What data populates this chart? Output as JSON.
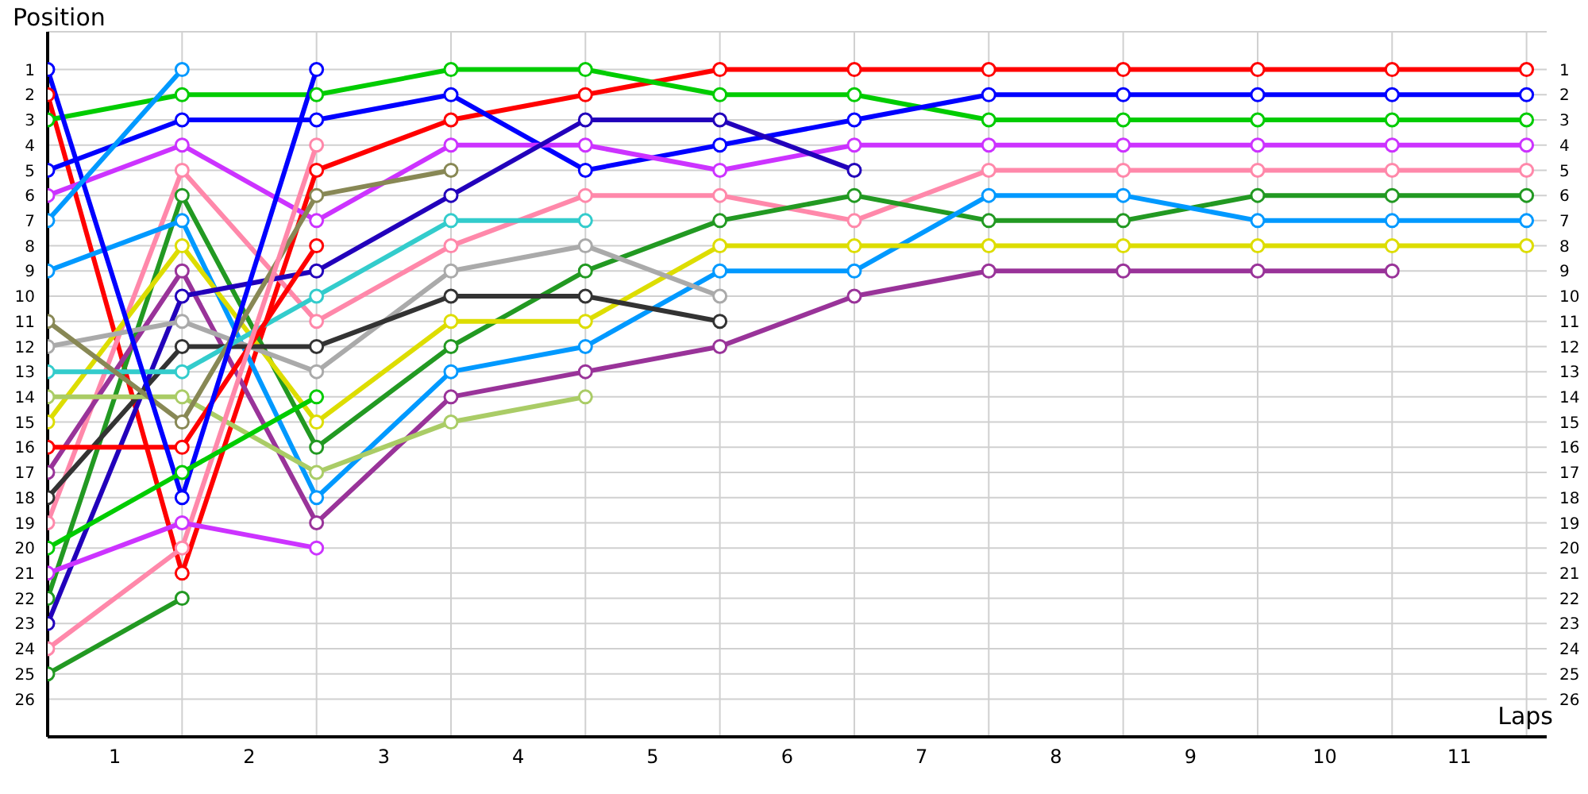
{
  "chart_data": {
    "type": "line",
    "xlabel": "Laps",
    "ylabel": "Position",
    "x": [
      0,
      1,
      2,
      3,
      4,
      5,
      6,
      7,
      8,
      9,
      10,
      11
    ],
    "xlim": [
      0,
      11.15
    ],
    "xticks": [
      {
        "value": 0,
        "label": null
      },
      {
        "value": 0.5,
        "label": "1"
      },
      {
        "value": 1,
        "label": null
      },
      {
        "value": 1.5,
        "label": "2"
      },
      {
        "value": 2,
        "label": null
      },
      {
        "value": 2.5,
        "label": "3"
      },
      {
        "value": 3,
        "label": null
      },
      {
        "value": 3.5,
        "label": "4"
      },
      {
        "value": 4,
        "label": null
      },
      {
        "value": 4.5,
        "label": "5"
      },
      {
        "value": 5,
        "label": null
      },
      {
        "value": 5.5,
        "label": "6"
      },
      {
        "value": 6,
        "label": null
      },
      {
        "value": 6.5,
        "label": "7"
      },
      {
        "value": 7,
        "label": null
      },
      {
        "value": 7.5,
        "label": "8"
      },
      {
        "value": 8,
        "label": null
      },
      {
        "value": 8.5,
        "label": "9"
      },
      {
        "value": 9,
        "label": null
      },
      {
        "value": 9.5,
        "label": "10"
      },
      {
        "value": 10,
        "label": null
      },
      {
        "value": 10.5,
        "label": "11"
      },
      {
        "value": 11,
        "label": null
      }
    ],
    "ylim": [
      27.5,
      -0.5
    ],
    "yticks": [
      1,
      2,
      3,
      4,
      5,
      6,
      7,
      8,
      9,
      10,
      11,
      12,
      13,
      14,
      15,
      16,
      17,
      18,
      19,
      20,
      21,
      22,
      23,
      24,
      25,
      26
    ],
    "y2lim": [
      27.5,
      -0.5
    ],
    "y2ticks": [
      1,
      2,
      3,
      4,
      5,
      6,
      7,
      8,
      9,
      10,
      11,
      12,
      13,
      14,
      15,
      16,
      17,
      18,
      19,
      20,
      21,
      22,
      23,
      24,
      25,
      26
    ],
    "grid": true,
    "marker": "circle",
    "line_style": "solid",
    "series": [
      {
        "color": "#ff0000",
        "values": [
          2,
          21,
          5,
          3,
          2,
          1,
          1,
          1,
          1,
          1,
          1,
          1
        ]
      },
      {
        "color": "#00cc00",
        "values": [
          3,
          2,
          2,
          1,
          1,
          2,
          2,
          3,
          3,
          3,
          3,
          3
        ]
      },
      {
        "color": "#0000ff",
        "values": [
          5,
          3,
          3,
          2,
          5,
          4,
          3,
          2,
          2,
          2,
          2,
          2
        ]
      },
      {
        "color": "#cc33ff",
        "values": [
          6,
          4,
          7,
          4,
          4,
          5,
          4,
          4,
          4,
          4,
          4,
          4
        ]
      },
      {
        "color": "#ff88aa",
        "values": [
          19,
          5,
          11,
          8,
          6,
          6,
          7,
          5,
          5,
          5,
          5,
          5
        ]
      },
      {
        "color": "#229922",
        "values": [
          22,
          6,
          16,
          12,
          9,
          7,
          6,
          7,
          7,
          6,
          6,
          6
        ]
      },
      {
        "color": "#0099ff",
        "values": [
          9,
          7,
          18,
          13,
          12,
          9,
          9,
          6,
          6,
          7,
          7,
          7
        ]
      },
      {
        "color": "#dddd00",
        "values": [
          15,
          8,
          15,
          11,
          11,
          8,
          8,
          8,
          8,
          8,
          8,
          8
        ]
      },
      {
        "color": "#993399",
        "values": [
          17,
          9,
          19,
          14,
          13,
          12,
          10,
          9,
          9,
          9,
          9,
          null
        ]
      },
      {
        "color": "#2200bb",
        "values": [
          23,
          10,
          9,
          6,
          3,
          3,
          5,
          null,
          null,
          null,
          null,
          null
        ]
      },
      {
        "color": "#aaaaaa",
        "values": [
          12,
          11,
          13,
          9,
          8,
          10,
          null,
          null,
          null,
          null,
          null,
          null
        ]
      },
      {
        "color": "#333333",
        "values": [
          18,
          12,
          12,
          10,
          10,
          11,
          null,
          null,
          null,
          null,
          null,
          null
        ]
      },
      {
        "color": "#33cccc",
        "values": [
          13,
          13,
          10,
          7,
          7,
          null,
          null,
          null,
          null,
          null,
          null,
          null
        ]
      },
      {
        "color": "#aacc66",
        "values": [
          14,
          14,
          17,
          15,
          14,
          null,
          null,
          null,
          null,
          null,
          null,
          null
        ]
      },
      {
        "color": "#888855",
        "values": [
          11,
          15,
          6,
          5,
          null,
          null,
          null,
          null,
          null,
          null,
          null,
          null
        ]
      },
      {
        "color": "#ff0000",
        "values": [
          16,
          16,
          8,
          null,
          null,
          null,
          null,
          null,
          null,
          null,
          null,
          null
        ]
      },
      {
        "color": "#0000ff",
        "values": [
          1,
          18,
          1,
          null,
          null,
          null,
          null,
          null,
          null,
          null,
          null,
          null
        ]
      },
      {
        "color": "#ff88aa",
        "values": [
          24,
          20,
          4,
          null,
          null,
          null,
          null,
          null,
          null,
          null,
          null,
          null
        ]
      },
      {
        "color": "#00cc00",
        "values": [
          20,
          17,
          14,
          null,
          null,
          null,
          null,
          null,
          null,
          null,
          null,
          null
        ]
      },
      {
        "color": "#cc33ff",
        "values": [
          21,
          19,
          20,
          null,
          null,
          null,
          null,
          null,
          null,
          null,
          null,
          null
        ]
      },
      {
        "color": "#0099ff",
        "values": [
          7,
          1,
          null,
          null,
          null,
          null,
          null,
          null,
          null,
          null,
          null,
          null
        ]
      },
      {
        "color": "#229922",
        "values": [
          25,
          22,
          null,
          null,
          null,
          null,
          null,
          null,
          null,
          null,
          null,
          null
        ]
      }
    ]
  }
}
